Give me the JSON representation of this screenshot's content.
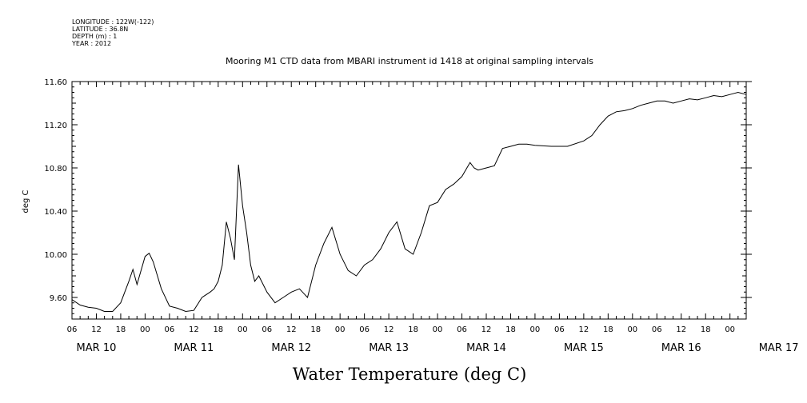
{
  "header": {
    "longitude": "LONGITUDE : 122W(-122)",
    "latitude": "LATITUDE : 36.8N",
    "depth": "DEPTH (m) : 1",
    "year": "YEAR : 2012"
  },
  "chart_data": {
    "type": "line",
    "title": "Mooring M1 CTD data from MBARI instrument id 1418 at original sampling intervals",
    "xlabel": "Water Temperature (deg C)",
    "ylabel": "deg C",
    "ylim": [
      9.4,
      11.6
    ],
    "xlim": [
      "2012-03-10T06:00",
      "2012-03-17T04:00"
    ],
    "y_ticks": [
      "9.60",
      "10.00",
      "10.40",
      "10.80",
      "11.20",
      "11.60"
    ],
    "x_hour_ticks": [
      "06",
      "12",
      "18",
      "00",
      "06",
      "12",
      "18",
      "00",
      "06",
      "12",
      "18",
      "00",
      "06",
      "12",
      "18",
      "00",
      "06",
      "12",
      "18",
      "00",
      "06",
      "12",
      "18",
      "00",
      "06",
      "12",
      "18",
      "00"
    ],
    "x_day_labels": [
      "MAR 10",
      "MAR 11",
      "MAR 12",
      "MAR 13",
      "MAR 14",
      "MAR 15",
      "MAR 16",
      "MAR 17"
    ],
    "grid": false,
    "line_color": "#000000",
    "series": [
      {
        "x": [
          "2012-03-10T06:00",
          "2012-03-10T08:00",
          "2012-03-10T10:00",
          "2012-03-10T12:00",
          "2012-03-10T14:00",
          "2012-03-10T16:00",
          "2012-03-10T18:00",
          "2012-03-10T20:00",
          "2012-03-10T21:00",
          "2012-03-10T22:00",
          "2012-03-11T00:00",
          "2012-03-11T01:00",
          "2012-03-11T02:00",
          "2012-03-11T04:00",
          "2012-03-11T06:00",
          "2012-03-11T08:00",
          "2012-03-11T10:00",
          "2012-03-11T12:00",
          "2012-03-11T14:00",
          "2012-03-11T16:00",
          "2012-03-11T17:00",
          "2012-03-11T18:00",
          "2012-03-11T19:00",
          "2012-03-11T20:00",
          "2012-03-11T21:00",
          "2012-03-11T22:00",
          "2012-03-11T23:00",
          "2012-03-12T00:00",
          "2012-03-12T01:00",
          "2012-03-12T02:00",
          "2012-03-12T03:00",
          "2012-03-12T04:00",
          "2012-03-12T06:00",
          "2012-03-12T08:00",
          "2012-03-12T10:00",
          "2012-03-12T12:00",
          "2012-03-12T14:00",
          "2012-03-12T16:00",
          "2012-03-12T18:00",
          "2012-03-12T20:00",
          "2012-03-12T22:00",
          "2012-03-13T00:00",
          "2012-03-13T02:00",
          "2012-03-13T04:00",
          "2012-03-13T06:00",
          "2012-03-13T08:00",
          "2012-03-13T10:00",
          "2012-03-13T12:00",
          "2012-03-13T14:00",
          "2012-03-13T16:00",
          "2012-03-13T18:00",
          "2012-03-13T20:00",
          "2012-03-13T22:00",
          "2012-03-14T00:00",
          "2012-03-14T02:00",
          "2012-03-14T04:00",
          "2012-03-14T06:00",
          "2012-03-14T08:00",
          "2012-03-14T09:00",
          "2012-03-14T10:00",
          "2012-03-14T12:00",
          "2012-03-14T14:00",
          "2012-03-14T16:00",
          "2012-03-14T18:00",
          "2012-03-14T20:00",
          "2012-03-14T22:00",
          "2012-03-15T00:00",
          "2012-03-15T04:00",
          "2012-03-15T08:00",
          "2012-03-15T12:00",
          "2012-03-15T14:00",
          "2012-03-15T16:00",
          "2012-03-15T18:00",
          "2012-03-15T20:00",
          "2012-03-15T22:00",
          "2012-03-16T00:00",
          "2012-03-16T02:00",
          "2012-03-16T04:00",
          "2012-03-16T06:00",
          "2012-03-16T08:00",
          "2012-03-16T10:00",
          "2012-03-16T12:00",
          "2012-03-16T14:00",
          "2012-03-16T16:00",
          "2012-03-16T18:00",
          "2012-03-16T20:00",
          "2012-03-16T22:00",
          "2012-03-17T00:00",
          "2012-03-17T01:00",
          "2012-03-17T02:00",
          "2012-03-17T04:00"
        ],
        "y": [
          9.58,
          9.53,
          9.51,
          9.5,
          9.47,
          9.47,
          9.55,
          9.75,
          9.86,
          9.72,
          9.98,
          10.01,
          9.93,
          9.68,
          9.52,
          9.5,
          9.47,
          9.48,
          9.6,
          9.65,
          9.68,
          9.75,
          9.9,
          10.3,
          10.15,
          9.95,
          10.83,
          10.45,
          10.2,
          9.9,
          9.75,
          9.8,
          9.65,
          9.55,
          9.6,
          9.65,
          9.68,
          9.6,
          9.9,
          10.1,
          10.25,
          10.0,
          9.85,
          9.8,
          9.9,
          9.95,
          10.05,
          10.2,
          10.3,
          10.05,
          10.0,
          10.2,
          10.45,
          10.48,
          10.6,
          10.65,
          10.72,
          10.85,
          10.8,
          10.78,
          10.8,
          10.82,
          10.98,
          11.0,
          11.02,
          11.02,
          11.01,
          11.0,
          11.0,
          11.05,
          11.1,
          11.2,
          11.28,
          11.32,
          11.33,
          11.35,
          11.38,
          11.4,
          11.42,
          11.42,
          11.4,
          11.42,
          11.44,
          11.43,
          11.45,
          11.47,
          11.46,
          11.48,
          11.49,
          11.5,
          11.48
        ]
      }
    ]
  }
}
